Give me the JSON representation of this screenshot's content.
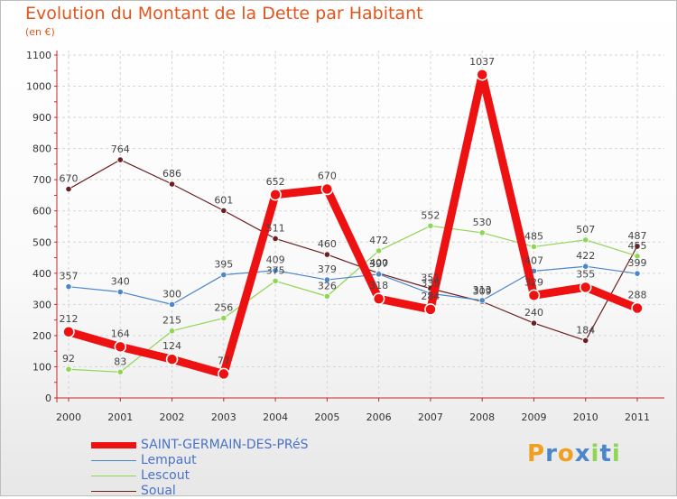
{
  "chart_data": {
    "type": "line",
    "title": "Evolution du Montant de la Dette par Habitant",
    "subtitle": "(en €)",
    "categories": [
      "2000",
      "2001",
      "2002",
      "2003",
      "2004",
      "2005",
      "2006",
      "2007",
      "2008",
      "2009",
      "2010",
      "2011"
    ],
    "ylim": [
      0,
      1100
    ],
    "yticks": [
      0,
      100,
      200,
      300,
      400,
      500,
      600,
      700,
      800,
      900,
      1000,
      1100
    ],
    "grid": true,
    "legend": "bottom-left",
    "series": [
      {
        "name": "SAINT-GERMAIN-DES-PRéS",
        "color": "#ee1111",
        "values": [
          212,
          164,
          124,
          77,
          652,
          670,
          318,
          284,
          1037,
          329,
          355,
          288
        ]
      },
      {
        "name": "Lempaut",
        "color": "#4a86c8",
        "values": [
          357,
          340,
          300,
          395,
          409,
          379,
          397,
          335,
          313,
          407,
          422,
          399
        ]
      },
      {
        "name": "Lescout",
        "color": "#8ed654",
        "values": [
          92,
          83,
          215,
          256,
          375,
          326,
          472,
          552,
          530,
          485,
          507,
          455
        ]
      },
      {
        "name": "Soual",
        "color": "#6b1f1f",
        "values": [
          670,
          764,
          686,
          601,
          511,
          460,
          400,
          351,
          309,
          240,
          184,
          487
        ]
      }
    ]
  },
  "logo": {
    "text": "Proxiti",
    "letters": [
      "P",
      "r",
      "o",
      "x",
      "i",
      "t",
      "i"
    ],
    "colors": [
      "#f0a020",
      "#4a86c8",
      "#f0a020",
      "#4a86c8",
      "#8ed654",
      "#4a86c8",
      "#8ed654"
    ]
  }
}
